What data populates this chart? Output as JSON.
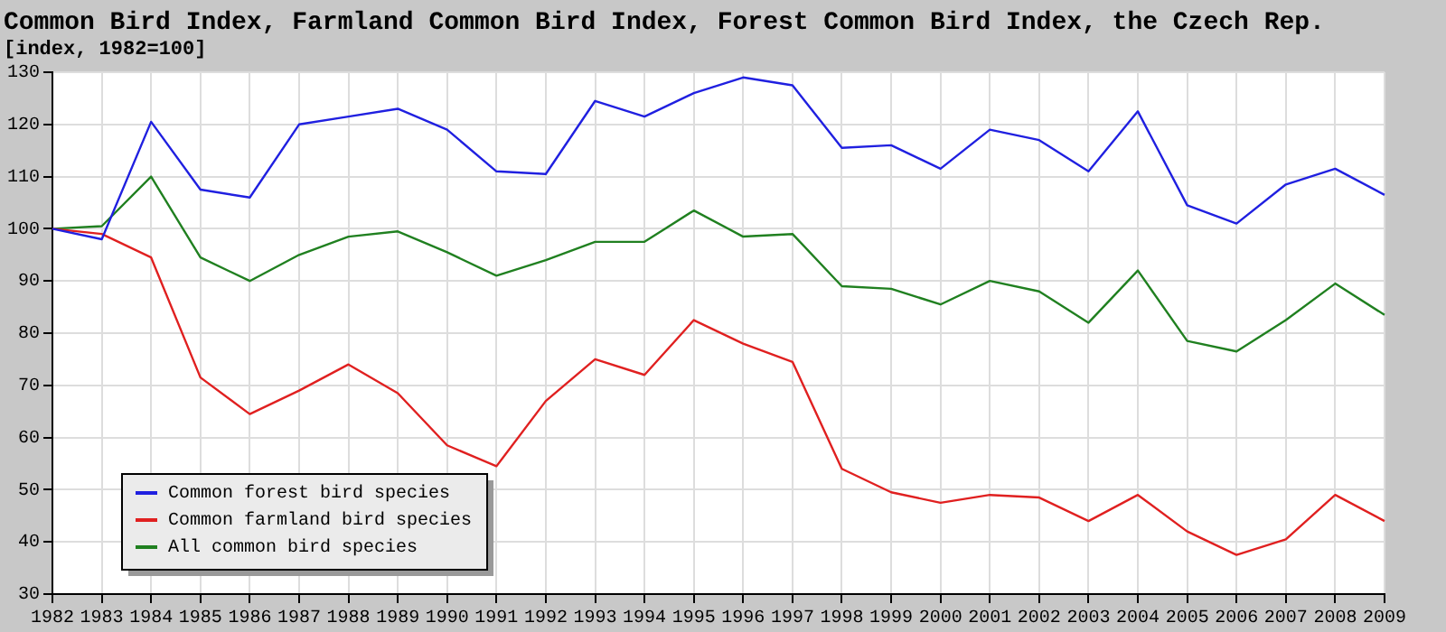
{
  "chart_data": {
    "type": "line",
    "title": "Common Bird Index, Farmland Common Bird Index, Forest Common Bird Index, the Czech Rep.",
    "subtitle": "[index, 1982=100]",
    "categories": [
      "1982",
      "1983",
      "1984",
      "1985",
      "1986",
      "1987",
      "1988",
      "1989",
      "1990",
      "1991",
      "1992",
      "1993",
      "1994",
      "1995",
      "1996",
      "1997",
      "1998",
      "1999",
      "2000",
      "2001",
      "2002",
      "2003",
      "2004",
      "2005",
      "2006",
      "2007",
      "2008",
      "2009"
    ],
    "series": [
      {
        "name": "Common forest bird species",
        "color": "#2020e0",
        "values": [
          100,
          98,
          120.5,
          107.5,
          106,
          120,
          121.5,
          123,
          119,
          111,
          110.5,
          124.5,
          121.5,
          126,
          129,
          127.5,
          115.5,
          116,
          111.5,
          119,
          117,
          111,
          122.5,
          104.5,
          101,
          108.5,
          111.5,
          106.5
        ]
      },
      {
        "name": "Common farmland bird species",
        "color": "#e02020",
        "values": [
          100,
          99,
          94.5,
          71.5,
          64.5,
          69,
          74,
          68.5,
          58.5,
          54.5,
          67,
          75,
          72,
          82.5,
          78,
          74.5,
          54,
          49.5,
          47.5,
          49,
          48.5,
          44,
          49,
          42,
          37.5,
          40.5,
          49,
          44
        ]
      },
      {
        "name": "All common bird species",
        "color": "#208020",
        "values": [
          100,
          100.5,
          110,
          94.5,
          90,
          95,
          98.5,
          99.5,
          95.5,
          91,
          94,
          97.5,
          97.5,
          103.5,
          98.5,
          99,
          89,
          88.5,
          85.5,
          90,
          88,
          82,
          92,
          78.5,
          76.5,
          82.5,
          89.5,
          83.5
        ]
      }
    ],
    "ylim": [
      30,
      130
    ],
    "yticks": [
      30,
      40,
      50,
      60,
      70,
      80,
      90,
      100,
      110,
      120,
      130
    ],
    "grid": true,
    "legend": "bottom left",
    "marker": "none",
    "line_style": "solid"
  }
}
